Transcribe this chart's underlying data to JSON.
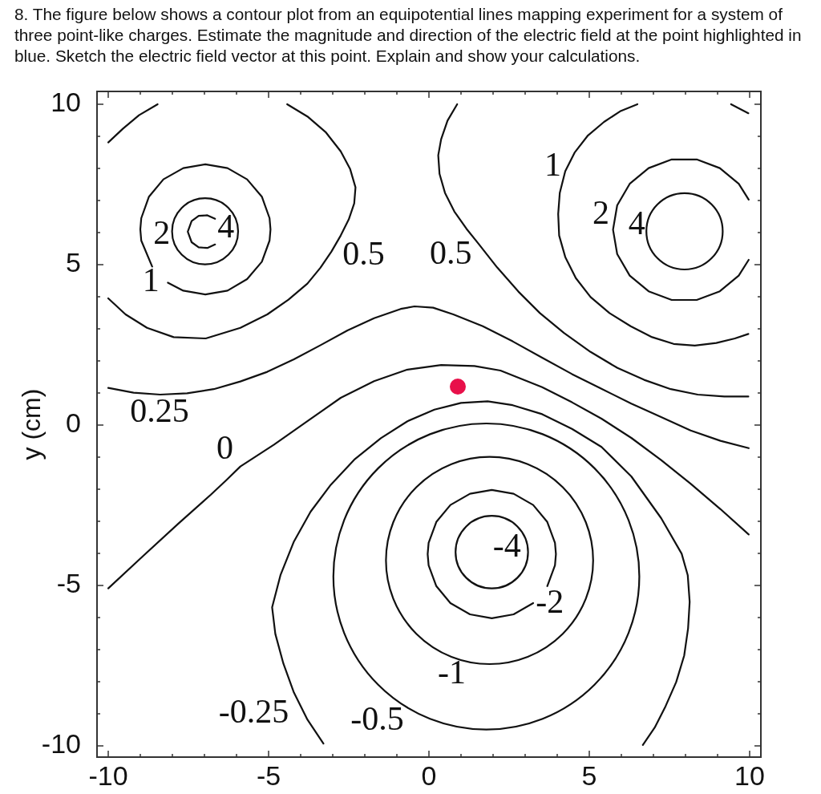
{
  "chart_data": {
    "type": "line",
    "title": "8. The figure below shows a contour plot from an equipotential lines mapping experiment for a system of three point-like charges. Estimate the magnitude and direction of the electric field at the point highlighted in blue. Sketch the electric field vector at this point. Explain and show your calculations.",
    "ylabel": "y (cm)",
    "xlim": [
      -10.35,
      10.35
    ],
    "ylim": [
      -10.35,
      10.4
    ],
    "xticks": [
      -10,
      {
        "value": -9,
        "label": null
      },
      {
        "value": -8,
        "label": null
      },
      {
        "value": -7,
        "label": null
      },
      {
        "value": -6,
        "label": null
      },
      -5,
      {
        "value": -4,
        "label": null
      },
      {
        "value": -3,
        "label": null
      },
      {
        "value": -2,
        "label": null
      },
      {
        "value": -1,
        "label": null
      },
      0,
      {
        "value": 1,
        "label": null
      },
      {
        "value": 2,
        "label": null
      },
      {
        "value": 3,
        "label": null
      },
      {
        "value": 4,
        "label": null
      },
      5,
      {
        "value": 6,
        "label": null
      },
      {
        "value": 7,
        "label": null
      },
      {
        "value": 8,
        "label": null
      },
      {
        "value": 9,
        "label": null
      },
      10
    ],
    "yticks": [
      -10,
      {
        "value": -9,
        "label": null
      },
      {
        "value": -8,
        "label": null
      },
      {
        "value": -7,
        "label": null
      },
      {
        "value": -6,
        "label": null
      },
      -5,
      {
        "value": -4,
        "label": null
      },
      {
        "value": -3,
        "label": null
      },
      {
        "value": -2,
        "label": null
      },
      {
        "value": -1,
        "label": null
      },
      0,
      {
        "value": 1,
        "label": null
      },
      {
        "value": 2,
        "label": null
      },
      {
        "value": 3,
        "label": null
      },
      {
        "value": 4,
        "label": null
      },
      5,
      {
        "value": 6,
        "label": null
      },
      {
        "value": 7,
        "label": null
      },
      {
        "value": 8,
        "label": null
      },
      {
        "value": 9,
        "label": null
      },
      10
    ],
    "grid": false,
    "legend": false,
    "marker": "none",
    "series": [
      {
        "color": "#111111",
        "x": [
          -6.67,
          -6.91,
          -7.18,
          -7.4,
          -7.52,
          -7.4,
          -7.18,
          -6.91,
          -6.67
        ],
        "values": [
          6.43,
          6.54,
          6.52,
          6.36,
          6.03,
          5.7,
          5.54,
          5.52,
          5.63
        ]
      },
      {
        "color": "#111111",
        "x": [
          -8.14,
          -7.66,
          -6.97,
          -6.28,
          -5.67,
          -5.21,
          -4.97,
          -4.94,
          -4.97,
          -5.21,
          -5.67,
          -6.28,
          -6.97,
          -7.66,
          -8.28,
          -8.73,
          -8.97,
          -9.0,
          -8.97,
          -8.63
        ],
        "values": [
          4.44,
          4.19,
          4.07,
          4.19,
          4.55,
          5.09,
          5.75,
          6.1,
          6.45,
          7.12,
          7.66,
          8.01,
          8.13,
          8.01,
          7.66,
          7.12,
          6.45,
          6.1,
          5.75,
          4.94
        ]
      },
      {
        "color": "#111111",
        "x": [
          -4.42,
          -3.79,
          -3.21,
          -2.75,
          -2.46,
          -2.29,
          -2.33,
          -2.5,
          -2.75,
          -3.04,
          -3.38,
          -3.79,
          -4.38,
          -5.04,
          -5.88,
          -6.96,
          -7.96,
          -8.79,
          -9.46,
          -10.0
        ],
        "values": [
          10.0,
          9.62,
          9.12,
          8.53,
          7.99,
          7.41,
          6.91,
          6.41,
          5.91,
          5.41,
          4.91,
          4.41,
          3.91,
          3.45,
          3.03,
          2.7,
          2.74,
          3.03,
          3.45,
          3.95
        ]
      },
      {
        "color": "#111111",
        "x": [
          -10.0,
          -9.54,
          -9.04,
          -8.46
        ],
        "values": [
          8.81,
          9.24,
          9.66,
          10.0
        ]
      },
      {
        "color": "#111111",
        "x": [
          9.97,
          9.66,
          9.07,
          8.35,
          7.57,
          6.85,
          6.26,
          5.87,
          5.74,
          5.87,
          6.26,
          6.85,
          7.57,
          8.35,
          9.07,
          9.66,
          9.97
        ],
        "values": [
          7.03,
          7.52,
          8.01,
          8.28,
          8.28,
          8.01,
          7.52,
          6.85,
          6.09,
          5.33,
          4.66,
          4.17,
          3.9,
          3.9,
          4.17,
          4.66,
          5.15
        ]
      },
      {
        "color": "#111111",
        "x": [
          6.5,
          5.96,
          5.46,
          4.96,
          4.54,
          4.25,
          4.08,
          4.03,
          4.06,
          4.25,
          4.58,
          5.04,
          5.63,
          6.29,
          6.96,
          7.63,
          8.29,
          8.96,
          9.54,
          9.96
        ],
        "values": [
          10.0,
          9.78,
          9.45,
          9.03,
          8.49,
          7.91,
          7.24,
          6.58,
          5.91,
          5.24,
          4.58,
          3.99,
          3.49,
          3.08,
          2.74,
          2.53,
          2.48,
          2.56,
          2.7,
          2.84
        ]
      },
      {
        "color": "#111111",
        "x": [
          9.42,
          9.96
        ],
        "values": [
          10.0,
          9.72
        ]
      },
      {
        "color": "#111111",
        "x": [
          0.88,
          0.58,
          0.38,
          0.29,
          0.33,
          0.5,
          0.79,
          1.17,
          1.54,
          2.13,
          2.79,
          3.46,
          4.21,
          5.04,
          5.88,
          6.71,
          7.54,
          8.38,
          9.21,
          9.96
        ],
        "values": [
          10.0,
          9.49,
          8.91,
          8.41,
          7.83,
          7.24,
          6.66,
          6.12,
          5.66,
          4.91,
          4.16,
          3.49,
          2.87,
          2.28,
          1.78,
          1.41,
          1.12,
          0.95,
          0.89,
          0.89
        ]
      },
      {
        "color": "#111111",
        "x": [
          -10.0,
          -9.21,
          -8.38,
          -7.54,
          -6.71,
          -5.88,
          -5.04,
          -4.21,
          -3.38,
          -2.54,
          -1.71,
          -0.88,
          -0.45,
          0.13,
          0.76,
          1.68,
          2.61,
          3.53,
          4.46,
          5.38,
          6.31,
          7.24,
          8.16,
          9.09,
          9.97
        ],
        "values": [
          1.16,
          1.01,
          0.95,
          0.99,
          1.12,
          1.36,
          1.66,
          2.05,
          2.49,
          2.95,
          3.33,
          3.62,
          3.7,
          3.66,
          3.45,
          3.08,
          2.61,
          2.1,
          1.59,
          1.13,
          0.67,
          0.25,
          -0.17,
          -0.49,
          -0.72
        ]
      },
      {
        "color": "#111111",
        "x": [
          -10.0,
          -8.9,
          -7.8,
          -6.8,
          -6.3,
          -5.88,
          -4.83,
          -3.79,
          -2.75,
          -1.71,
          -0.67,
          0.38,
          1.42,
          2.23,
          3.53,
          4.46,
          5.38,
          6.31,
          7.24,
          8.16,
          9.09,
          9.97
        ],
        "values": [
          -5.09,
          -4.07,
          -3.06,
          -2.17,
          -1.7,
          -1.29,
          -0.61,
          0.12,
          0.85,
          1.37,
          1.73,
          1.87,
          1.84,
          1.7,
          1.18,
          0.71,
          0.2,
          -0.4,
          -1.09,
          -1.83,
          -2.62,
          -3.41
        ]
      },
      {
        "color": "#111111",
        "x": [
          -3.29,
          -3.79,
          -4.21,
          -4.54,
          -4.79,
          -4.89,
          -4.63,
          -4.21,
          -3.69,
          -3.06,
          -2.33,
          -1.5,
          -0.67,
          0.17,
          1.0,
          1.83,
          2.61,
          3.53,
          4.46,
          5.38,
          6.31,
          7.24,
          7.88,
          8.07,
          8.13,
          8.08,
          7.96,
          7.71,
          7.38,
          7.04,
          6.67
        ],
        "values": [
          -9.93,
          -9.18,
          -8.34,
          -7.43,
          -6.51,
          -5.68,
          -4.68,
          -3.63,
          -2.7,
          -1.86,
          -1.08,
          -0.41,
          0.12,
          0.48,
          0.69,
          0.74,
          0.62,
          0.34,
          -0.12,
          -0.68,
          -1.6,
          -2.9,
          -4.01,
          -4.68,
          -5.51,
          -6.34,
          -7.18,
          -8.01,
          -8.76,
          -9.43,
          -9.97
        ]
      },
      {
        "color": "#111111",
        "x": [
          3.69,
          3.93,
          3.96,
          3.93,
          3.69,
          3.25,
          2.64,
          1.96,
          1.28,
          0.67,
          0.23,
          -0.01,
          -0.04,
          -0.01,
          0.23,
          0.67,
          1.28,
          1.96,
          2.64,
          3.25
        ],
        "values": [
          -5.02,
          -4.37,
          -4.02,
          -3.67,
          -3.02,
          -2.49,
          -2.14,
          -2.02,
          -2.14,
          -2.49,
          -3.02,
          -3.67,
          -4.02,
          -4.37,
          -5.02,
          -5.55,
          -5.9,
          -6.02,
          -5.9,
          -5.55
        ]
      },
      {
        "type": "scatter",
        "color": "#e8104a",
        "marker": "circle",
        "x": [
          0.9
        ],
        "values": [
          1.2
        ]
      }
    ],
    "annotations": [
      "4",
      "2",
      "1",
      "0.5",
      "0.5",
      "1",
      "2",
      "4",
      "0.25",
      "0",
      "-4",
      "-2",
      "-1",
      "-0.25",
      "-0.5"
    ]
  }
}
